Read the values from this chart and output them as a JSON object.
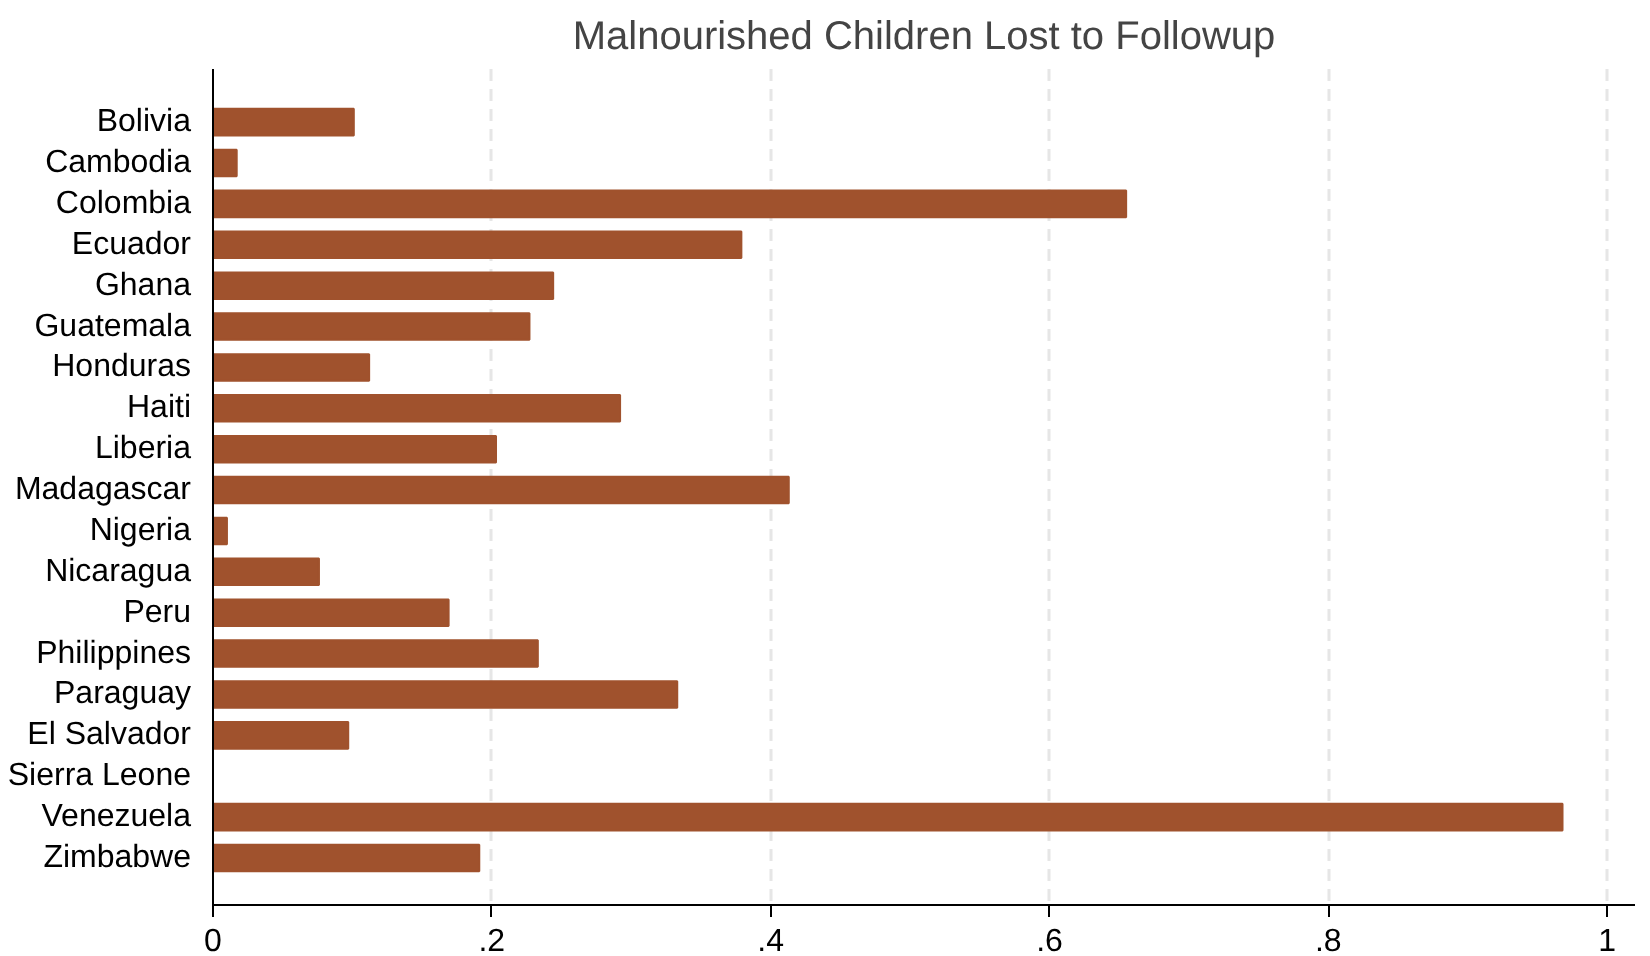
{
  "chart_data": {
    "type": "bar",
    "orientation": "horizontal",
    "title": "Malnourished Children Lost to Followup",
    "categories": [
      "Bolivia",
      "Cambodia",
      "Colombia",
      "Ecuador",
      "Ghana",
      "Guatemala",
      "Honduras",
      "Haiti",
      "Liberia",
      "Madagascar",
      "Nigeria",
      "Nicaragua",
      "Peru",
      "Philippines",
      "Paraguay",
      "El Salvador",
      "Sierra Leone",
      "Venezuela",
      "Zimbabwe"
    ],
    "values": [
      0.101,
      0.017,
      0.655,
      0.379,
      0.244,
      0.227,
      0.112,
      0.292,
      0.203,
      0.413,
      0.01,
      0.076,
      0.169,
      0.233,
      0.333,
      0.097,
      0,
      0.968,
      0.191
    ],
    "color": "#a0522d",
    "xlim": [
      0,
      1.02
    ],
    "xticks": [
      0,
      {
        "value": 0.2,
        "label": ".2"
      },
      {
        "value": 0.4,
        "label": ".4"
      },
      {
        "value": 0.6,
        "label": ".6"
      },
      {
        "value": 0.8,
        "label": ".8"
      },
      1
    ],
    "grid": "x"
  }
}
